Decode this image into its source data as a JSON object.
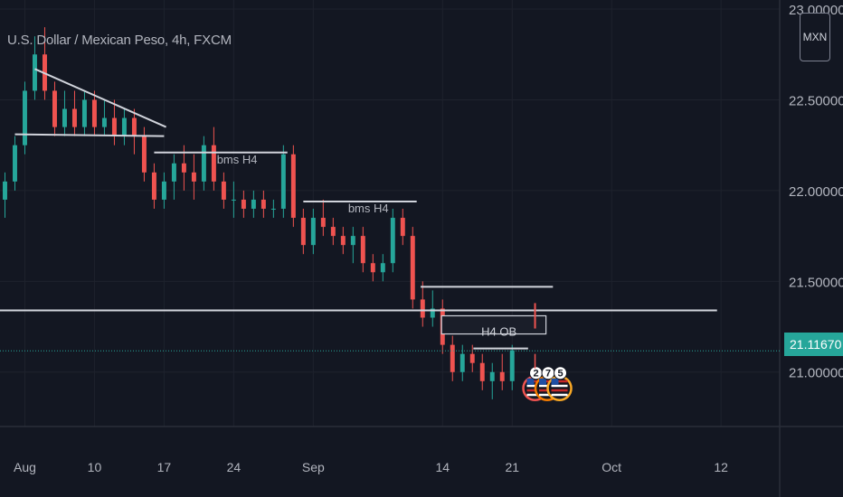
{
  "title": "U.S. Dollar / Mexican Peso, 4h, FXCM",
  "currency_button": "MXN",
  "current_price": "21.11670",
  "colors": {
    "background": "#131722",
    "grid": "#1e222d",
    "up": "#26a69a",
    "down": "#ef5350",
    "text": "#b2b5be",
    "lines": "#d1d4dc",
    "price_line": "#26a69a"
  },
  "events": {
    "flag": "us-flag-icon",
    "counts": [
      "2",
      "7",
      "5"
    ]
  },
  "chart_data": {
    "type": "candlestick",
    "y_ticks": [
      {
        "value": 23.0,
        "label": "23.00000"
      },
      {
        "value": 22.5,
        "label": "22.50000"
      },
      {
        "value": 22.0,
        "label": "22.00000"
      },
      {
        "value": 21.5,
        "label": "21.50000"
      },
      {
        "value": 21.0,
        "label": "21.00000"
      }
    ],
    "x_ticks": [
      {
        "day": 3,
        "label": "Aug"
      },
      {
        "day": 10,
        "label": "10"
      },
      {
        "day": 17,
        "label": "17"
      },
      {
        "day": 24,
        "label": "24"
      },
      {
        "day": 32,
        "label": "Sep"
      },
      {
        "day": 45,
        "label": "14"
      },
      {
        "day": 52,
        "label": "21"
      },
      {
        "day": 62,
        "label": "Oct"
      },
      {
        "day": 73,
        "label": "12"
      }
    ],
    "ylim": [
      20.7,
      23.05
    ],
    "xlim": [
      0.5,
      78.9
    ],
    "last_price": 21.1167,
    "ohlc": [
      [
        1,
        21.95,
        22.1,
        21.85,
        22.05
      ],
      [
        2,
        22.05,
        22.3,
        22.0,
        22.25
      ],
      [
        3,
        22.25,
        22.6,
        22.2,
        22.55
      ],
      [
        4,
        22.55,
        22.85,
        22.5,
        22.75
      ],
      [
        5,
        22.75,
        22.9,
        22.5,
        22.55
      ],
      [
        6,
        22.55,
        22.6,
        22.3,
        22.35
      ],
      [
        7,
        22.35,
        22.55,
        22.3,
        22.45
      ],
      [
        8,
        22.45,
        22.55,
        22.3,
        22.35
      ],
      [
        9,
        22.35,
        22.55,
        22.3,
        22.5
      ],
      [
        10,
        22.5,
        22.55,
        22.3,
        22.35
      ],
      [
        11,
        22.35,
        22.5,
        22.3,
        22.4
      ],
      [
        12,
        22.4,
        22.5,
        22.25,
        22.3
      ],
      [
        13,
        22.3,
        22.45,
        22.25,
        22.4
      ],
      [
        14,
        22.4,
        22.45,
        22.2,
        22.3
      ],
      [
        15,
        22.3,
        22.35,
        22.05,
        22.1
      ],
      [
        16,
        22.1,
        22.15,
        21.9,
        21.95
      ],
      [
        17,
        21.95,
        22.1,
        21.9,
        22.05
      ],
      [
        18,
        22.05,
        22.2,
        21.95,
        22.15
      ],
      [
        19,
        22.15,
        22.25,
        22.0,
        22.1
      ],
      [
        20,
        22.1,
        22.2,
        21.95,
        22.05
      ],
      [
        21,
        22.05,
        22.3,
        22.0,
        22.25
      ],
      [
        22,
        22.25,
        22.35,
        22.0,
        22.05
      ],
      [
        23,
        22.05,
        22.1,
        21.9,
        21.95
      ],
      [
        24,
        21.95,
        22.05,
        21.85,
        21.95
      ],
      [
        25,
        21.95,
        22.0,
        21.85,
        21.9
      ],
      [
        26,
        21.9,
        22.0,
        21.85,
        21.95
      ],
      [
        27,
        21.95,
        22.0,
        21.85,
        21.9
      ],
      [
        28,
        21.9,
        21.95,
        21.85,
        21.9
      ],
      [
        29,
        21.9,
        22.25,
        21.85,
        22.2
      ],
      [
        30,
        22.2,
        22.25,
        21.8,
        21.85
      ],
      [
        31,
        21.85,
        21.9,
        21.65,
        21.7
      ],
      [
        32,
        21.7,
        21.9,
        21.65,
        21.85
      ],
      [
        33,
        21.85,
        21.95,
        21.75,
        21.8
      ],
      [
        34,
        21.8,
        21.85,
        21.7,
        21.75
      ],
      [
        35,
        21.75,
        21.8,
        21.65,
        21.7
      ],
      [
        36,
        21.7,
        21.8,
        21.6,
        21.75
      ],
      [
        37,
        21.75,
        21.8,
        21.55,
        21.6
      ],
      [
        38,
        21.6,
        21.65,
        21.5,
        21.55
      ],
      [
        39,
        21.55,
        21.65,
        21.5,
        21.6
      ],
      [
        40,
        21.6,
        21.9,
        21.55,
        21.85
      ],
      [
        41,
        21.85,
        21.9,
        21.7,
        21.75
      ],
      [
        42,
        21.75,
        21.8,
        21.35,
        21.4
      ],
      [
        43,
        21.4,
        21.5,
        21.25,
        21.3
      ],
      [
        44,
        21.3,
        21.45,
        21.25,
        21.35
      ],
      [
        45,
        21.35,
        21.4,
        21.1,
        21.15
      ],
      [
        46,
        21.15,
        21.2,
        20.95,
        21.0
      ],
      [
        47,
        21.0,
        21.15,
        20.95,
        21.1
      ],
      [
        48,
        21.1,
        21.15,
        21.0,
        21.05
      ],
      [
        49,
        21.05,
        21.1,
        20.9,
        20.95
      ],
      [
        50,
        20.95,
        21.05,
        20.85,
        21.0
      ],
      [
        51,
        21.0,
        21.1,
        20.9,
        20.95
      ],
      [
        52,
        20.95,
        21.15,
        20.9,
        21.12
      ]
    ]
  },
  "annotations": {
    "bms_label_1": "bms H4",
    "bms_label_2": "bms H4",
    "ob_label": "H4 OB"
  }
}
